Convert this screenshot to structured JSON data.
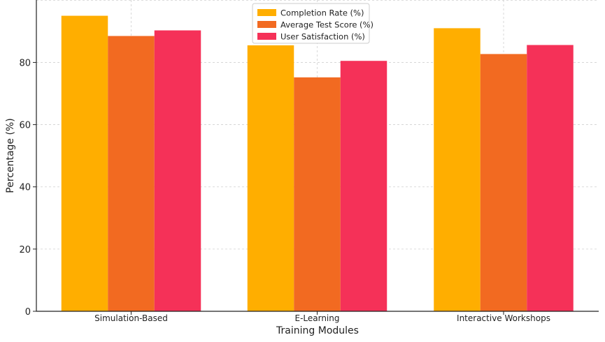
{
  "chart_data": {
    "type": "bar",
    "categories": [
      "Simulation-Based",
      "E-Learning",
      "Interactive Workshops"
    ],
    "series": [
      {
        "name": "Completion Rate (%)",
        "values": [
          95,
          85.5,
          91
        ],
        "color": "#FFAE00"
      },
      {
        "name": "Average Test Score (%)",
        "values": [
          88.5,
          75.2,
          82.7
        ],
        "color": "#F26A21"
      },
      {
        "name": "User Satisfaction (%)",
        "values": [
          90.3,
          80.5,
          85.6
        ],
        "color": "#F53158"
      }
    ],
    "xlabel": "Training Modules",
    "ylabel": "Percentage (%)",
    "ylim": [
      0,
      100
    ],
    "yticks": [
      0,
      20,
      40,
      60,
      80
    ],
    "grid": true,
    "legend_position": "top-center"
  }
}
